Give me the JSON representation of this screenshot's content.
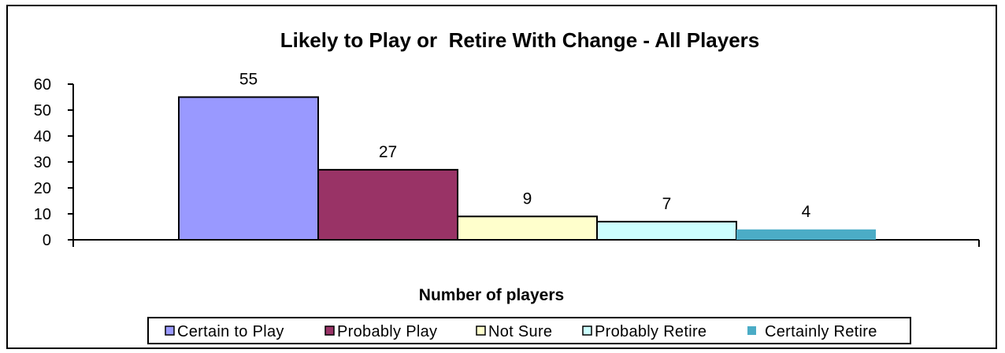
{
  "chart_data": {
    "type": "bar",
    "title": "Likely to Play or  Retire With Change - All Players",
    "xlabel": "Number of players",
    "ylabel": "",
    "ylim": [
      0,
      60
    ],
    "yticks": [
      "0",
      "10",
      "20",
      "30",
      "40",
      "50",
      "60"
    ],
    "grid": false,
    "legend_position": "bottom",
    "series": [
      {
        "name": "Certain to Play",
        "value": 55,
        "label": "55",
        "color": "#9999FF"
      },
      {
        "name": "Probably Play",
        "value": 27,
        "label": "27",
        "color": "#993366"
      },
      {
        "name": "Not Sure",
        "value": 9,
        "label": "9",
        "color": "#FFFFCC"
      },
      {
        "name": "Probably Retire",
        "value": 7,
        "label": "7",
        "color": "#CCFFFF"
      },
      {
        "name": "Certainly Retire",
        "value": 4,
        "label": "4",
        "color": "#4BACC6"
      }
    ]
  }
}
